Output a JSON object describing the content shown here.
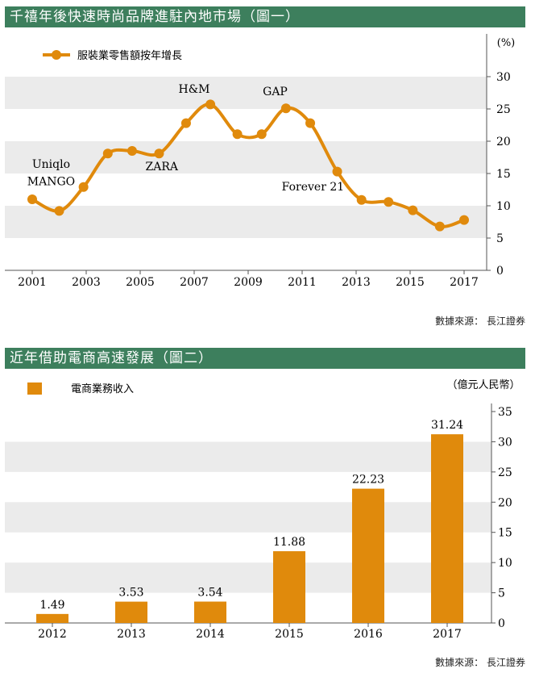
{
  "chart1": {
    "title": "千禧年後快速時尚品牌進駐內地市場（圖一）",
    "source": "數據來源： 長江證券",
    "chart_data": {
      "type": "line",
      "unit": "(%)",
      "ylim": [
        0,
        30
      ],
      "yticks": [
        0,
        5,
        10,
        15,
        20,
        25,
        30
      ],
      "xlim": [
        2001,
        2017
      ],
      "xticks": [
        "2001",
        "2003",
        "2005",
        "2007",
        "2009",
        "2011",
        "2013",
        "2015",
        "2017"
      ],
      "legend": "服裝業零售額按年增長",
      "series": [
        {
          "name": "服裝業零售額按年增長",
          "color": "#e08a0c",
          "x": [
            2001,
            2002,
            2002.9,
            2003.8,
            2004.7,
            2005.7,
            2006.7,
            2007.6,
            2008.6,
            2009.5,
            2010.4,
            2011.3,
            2012.3,
            2013.2,
            2014.2,
            2015.1,
            2016.1,
            2017
          ],
          "y": [
            11,
            9.2,
            12.9,
            18.1,
            18.5,
            18.1,
            22.8,
            25.7,
            21.1,
            21.1,
            25.1,
            22.8,
            15.3,
            10.9,
            10.6,
            9.3,
            6.8,
            7.8
          ]
        }
      ],
      "annotations": [
        {
          "text": "Uniqlo",
          "x": 2001.7,
          "y": 15.9
        },
        {
          "text": "MANGO",
          "x": 2001.7,
          "y": 13.2
        },
        {
          "text": "H&M",
          "x": 2007.0,
          "y": 27.5
        },
        {
          "text": "ZARA",
          "x": 2005.8,
          "y": 15.5
        },
        {
          "text": "GAP",
          "x": 2010.0,
          "y": 27.1
        },
        {
          "text": "Forever 21",
          "x": 2011.4,
          "y": 12.4
        }
      ]
    }
  },
  "chart2": {
    "title": "近年借助電商高速發展（圖二）",
    "source": "數據來源： 長江證券",
    "chart_data": {
      "type": "bar",
      "unit": "（億元人民幣）",
      "ylim": [
        0,
        35
      ],
      "yticks": [
        0,
        5,
        10,
        15,
        20,
        25,
        30,
        35
      ],
      "legend": "電商業務收入",
      "categories": [
        "2012",
        "2013",
        "2014",
        "2015",
        "2016",
        "2017"
      ],
      "series": [
        {
          "name": "電商業務收入",
          "color": "#e08a0c",
          "values": [
            1.49,
            3.53,
            3.54,
            11.88,
            22.23,
            31.24
          ],
          "labels": [
            "1.49",
            "3.53",
            "3.54",
            "11.88",
            "22.23",
            "31.24"
          ]
        }
      ]
    }
  }
}
